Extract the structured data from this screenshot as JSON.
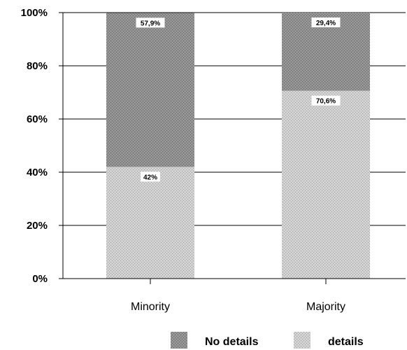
{
  "colors": {
    "no_details": "#8c8c8c",
    "details": "#c4c4c4",
    "axis": "#000000",
    "grid": "#000000"
  },
  "chart_data": {
    "type": "bar",
    "stacked": true,
    "categories": [
      "Minority",
      "Majority"
    ],
    "series": [
      {
        "name": "details",
        "values": [
          42,
          70.6
        ],
        "labels": [
          "42%",
          "70,6%"
        ]
      },
      {
        "name": "No details",
        "values": [
          57.9,
          29.4
        ],
        "labels": [
          "57,9%",
          "29,4%"
        ]
      }
    ],
    "ylim": [
      0,
      100
    ],
    "yticks": [
      0,
      20,
      40,
      60,
      80,
      100
    ],
    "ytick_labels": [
      "0%",
      "20%",
      "40%",
      "60%",
      "80%",
      "100%"
    ],
    "grid": true,
    "legend": {
      "placement": "bottom",
      "entries": [
        "No details",
        "details"
      ]
    }
  }
}
